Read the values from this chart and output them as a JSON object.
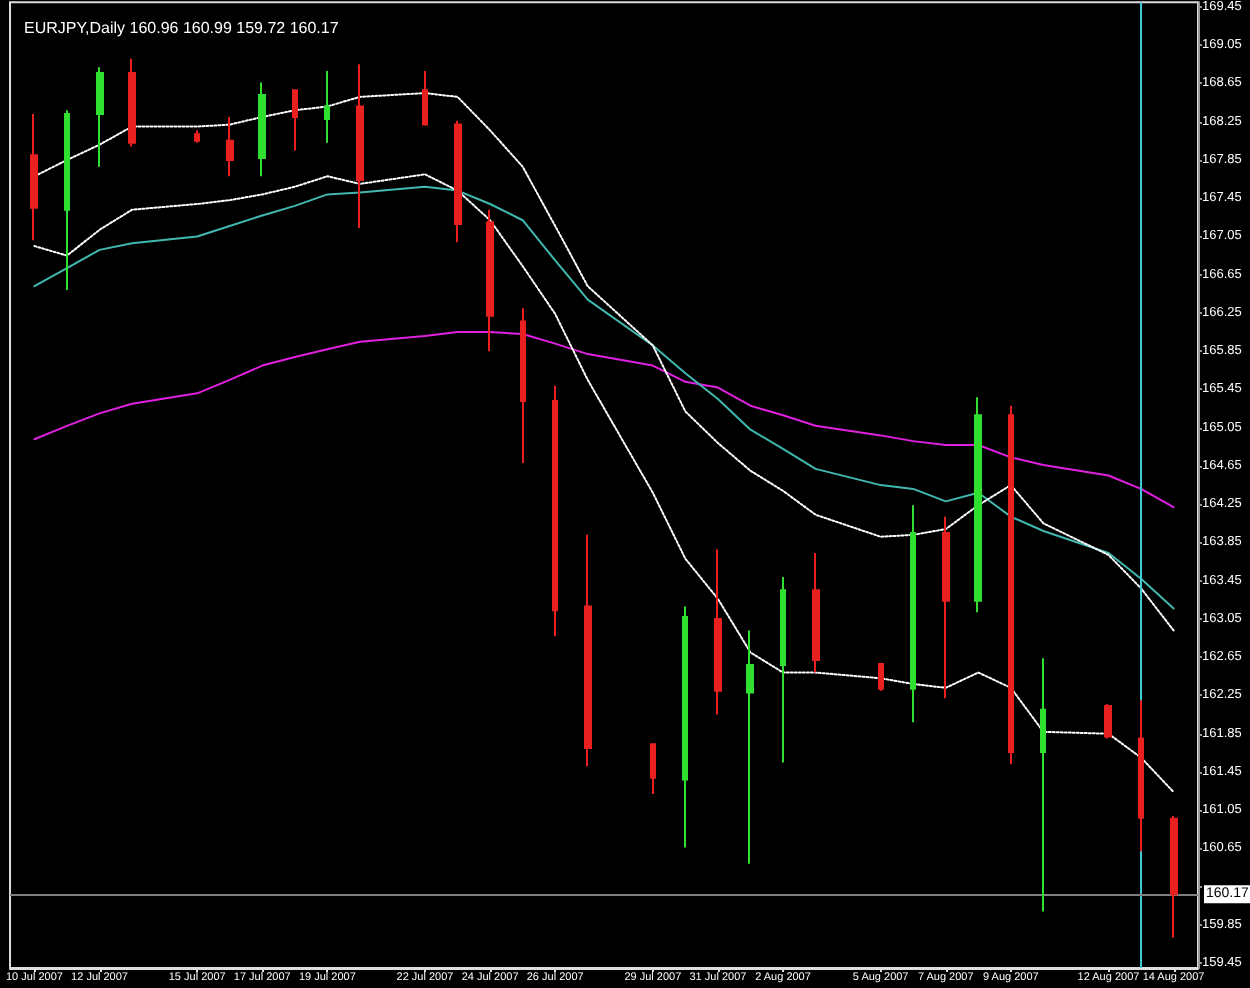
{
  "chart_data": {
    "type": "candlestick",
    "title": "EURJPY,Daily 160.96 160.99 159.72 160.17",
    "x": [
      "2007-07-10",
      "2007-07-11",
      "2007-07-12",
      "2007-07-13",
      "2007-07-15",
      "2007-07-16",
      "2007-07-17",
      "2007-07-18",
      "2007-07-19",
      "2007-07-20",
      "2007-07-22",
      "2007-07-23",
      "2007-07-24",
      "2007-07-25",
      "2007-07-26",
      "2007-07-27",
      "2007-07-29",
      "2007-07-30",
      "2007-07-31",
      "2007-08-01",
      "2007-08-02",
      "2007-08-03",
      "2007-08-05",
      "2007-08-06",
      "2007-08-07",
      "2007-08-08",
      "2007-08-09",
      "2007-08-10",
      "2007-08-12",
      "2007-08-13",
      "2007-08-14"
    ],
    "xticks": [
      {
        "value": "2007-07-10",
        "label": "10 Jul 2007"
      },
      {
        "value": "2007-07-12",
        "label": "12 Jul 2007"
      },
      {
        "value": "2007-07-15",
        "label": "15 Jul 2007"
      },
      {
        "value": "2007-07-17",
        "label": "17 Jul 2007"
      },
      {
        "value": "2007-07-19",
        "label": "19 Jul 2007"
      },
      {
        "value": "2007-07-22",
        "label": "22 Jul 2007"
      },
      {
        "value": "2007-07-24",
        "label": "24 Jul 2007"
      },
      {
        "value": "2007-07-26",
        "label": "26 Jul 2007"
      },
      {
        "value": "2007-07-29",
        "label": "29 Jul 2007"
      },
      {
        "value": "2007-07-31",
        "label": "31 Jul 2007"
      },
      {
        "value": "2007-08-02",
        "label": "2 Aug 2007"
      },
      {
        "value": "2007-08-05",
        "label": "5 Aug 2007"
      },
      {
        "value": "2007-08-07",
        "label": "7 Aug 2007"
      },
      {
        "value": "2007-08-09",
        "label": "9 Aug 2007"
      },
      {
        "value": "2007-08-12",
        "label": "12 Aug 2007"
      },
      {
        "value": "2007-08-14",
        "label": "14 Aug 2007"
      }
    ],
    "xlim": [
      "2007-07-09T06:00",
      "2007-08-14T18:00"
    ],
    "ylim": [
      159.4,
      169.5
    ],
    "yticks": [
      159.45,
      159.85,
      {
        "value": 160.25,
        "label": null
      },
      160.65,
      161.05,
      161.45,
      161.85,
      162.25,
      162.65,
      163.05,
      163.45,
      163.85,
      164.25,
      164.65,
      165.05,
      165.45,
      165.85,
      166.25,
      166.65,
      167.05,
      167.45,
      167.85,
      168.25,
      168.65,
      169.05,
      169.45
    ],
    "marker": "none",
    "series": [
      {
        "type": "line",
        "color": "#e020e0",
        "line_style": "solid",
        "values": [
          164.93,
          165.07,
          165.2,
          165.3,
          165.41,
          165.55,
          165.7,
          165.79,
          165.87,
          165.95,
          166.01,
          166.05,
          166.05,
          166.03,
          165.93,
          165.82,
          165.7,
          165.53,
          165.47,
          165.28,
          165.18,
          165.07,
          164.97,
          164.91,
          164.87,
          164.87,
          164.74,
          164.66,
          164.55,
          164.41,
          164.22
        ]
      },
      {
        "type": "line",
        "color": "#40b8b0",
        "line_style": "solid",
        "values": [
          166.53,
          166.72,
          166.91,
          166.98,
          167.05,
          167.16,
          167.27,
          167.37,
          167.49,
          167.51,
          167.57,
          167.53,
          167.39,
          167.22,
          166.8,
          166.39,
          165.91,
          165.62,
          165.35,
          165.03,
          164.83,
          164.62,
          164.45,
          164.41,
          164.28,
          164.37,
          164.12,
          163.97,
          163.74,
          163.47,
          163.16
        ]
      },
      {
        "type": "line",
        "color": "#ffffff",
        "line_style": "dotted",
        "values": [
          167.68,
          167.85,
          168.01,
          168.2,
          168.2,
          168.22,
          168.3,
          168.37,
          168.41,
          168.51,
          168.55,
          168.51,
          168.16,
          167.78,
          167.16,
          166.53,
          165.91,
          165.22,
          164.89,
          164.6,
          164.39,
          164.14,
          163.91,
          163.93,
          163.99,
          164.24,
          164.45,
          164.05,
          163.72,
          163.37,
          162.93
        ]
      },
      {
        "type": "line",
        "color": "#ffffff",
        "line_style": "dotted",
        "values": [
          166.95,
          166.85,
          167.12,
          167.33,
          167.39,
          167.43,
          167.49,
          167.57,
          167.68,
          167.6,
          167.7,
          167.53,
          167.22,
          166.74,
          166.24,
          165.55,
          164.37,
          163.68,
          163.26,
          162.7,
          162.49,
          162.49,
          162.43,
          162.37,
          162.33,
          162.49,
          162.33,
          161.87,
          161.85,
          161.6,
          161.24
        ]
      },
      {
        "type": "candlestick",
        "colors": [
          "#e82020",
          "#30e030",
          "#30e030",
          "#e82020",
          "#e82020",
          "#e82020",
          "#30e030",
          "#e82020",
          "#30e030",
          "#e82020",
          "#e82020",
          "#e82020",
          "#e82020",
          "#e82020",
          "#e82020",
          "#e82020",
          "#e82020",
          "#30e030",
          "#e82020",
          "#30e030",
          "#30e030",
          "#e82020",
          "#e82020",
          "#30e030",
          "#e82020",
          "#30e030",
          "#e82020",
          "#30e030",
          "#e82020",
          "#e82020",
          "#e82020"
        ],
        "ohlc": [
          [
            167.9,
            168.33,
            167.01,
            167.35
          ],
          [
            167.33,
            168.37,
            166.49,
            168.33
          ],
          [
            168.33,
            168.82,
            167.78,
            168.76
          ],
          [
            168.76,
            168.91,
            167.99,
            168.03
          ],
          [
            168.12,
            168.16,
            168.03,
            168.05
          ],
          [
            168.05,
            168.3,
            167.68,
            167.85
          ],
          [
            167.87,
            168.66,
            167.68,
            168.53
          ],
          [
            168.58,
            168.58,
            167.95,
            168.3
          ],
          [
            168.28,
            168.78,
            168.03,
            168.41
          ],
          [
            168.41,
            168.85,
            167.14,
            167.64
          ],
          [
            168.58,
            168.78,
            168.22,
            168.22
          ],
          [
            168.22,
            168.26,
            166.99,
            167.18
          ],
          [
            167.2,
            167.33,
            165.85,
            166.22
          ],
          [
            166.16,
            166.3,
            164.68,
            165.33
          ],
          [
            165.33,
            165.49,
            162.87,
            163.14
          ],
          [
            163.18,
            163.93,
            161.51,
            161.7
          ],
          [
            161.74,
            161.74,
            161.22,
            161.39
          ],
          [
            161.37,
            163.18,
            160.66,
            163.07
          ],
          [
            163.05,
            163.78,
            162.05,
            162.3
          ],
          [
            162.28,
            162.93,
            160.49,
            162.57
          ],
          [
            162.57,
            163.49,
            161.55,
            163.35
          ],
          [
            163.35,
            163.74,
            162.49,
            162.62
          ],
          [
            162.58,
            162.58,
            162.3,
            162.32
          ],
          [
            162.32,
            164.24,
            161.97,
            163.95
          ],
          [
            163.95,
            164.12,
            162.22,
            163.24
          ],
          [
            163.24,
            165.37,
            163.12,
            165.18
          ],
          [
            165.18,
            165.28,
            161.53,
            161.66
          ],
          [
            161.66,
            162.64,
            159.99,
            162.1
          ],
          [
            162.14,
            162.16,
            161.8,
            161.82
          ],
          [
            161.8,
            162.2,
            160.62,
            160.97
          ],
          [
            160.96,
            160.99,
            159.72,
            160.17
          ]
        ]
      }
    ],
    "ref_lines": [
      {
        "axis": "x",
        "value": "2007-08-13",
        "label": null,
        "color": "#40c8d8"
      },
      {
        "axis": "y",
        "value": 160.17,
        "label": "160.17",
        "color": "#808080"
      }
    ]
  }
}
